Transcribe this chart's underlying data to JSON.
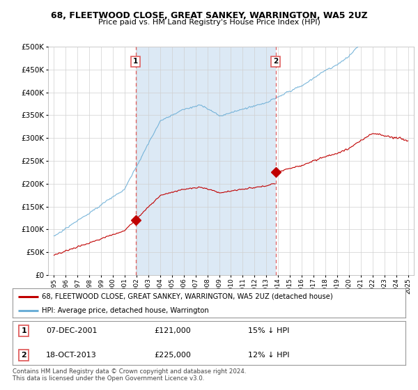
{
  "title1": "68, FLEETWOOD CLOSE, GREAT SANKEY, WARRINGTON, WA5 2UZ",
  "title2": "Price paid vs. HM Land Registry's House Price Index (HPI)",
  "legend_line1": "68, FLEETWOOD CLOSE, GREAT SANKEY, WARRINGTON, WA5 2UZ (detached house)",
  "legend_line2": "HPI: Average price, detached house, Warrington",
  "footer": "Contains HM Land Registry data © Crown copyright and database right 2024.\nThis data is licensed under the Open Government Licence v3.0.",
  "sale1_date": "07-DEC-2001",
  "sale1_price": 121000,
  "sale1_hpi": "15% ↓ HPI",
  "sale1_year": 2001.917,
  "sale2_date": "18-OCT-2013",
  "sale2_price": 225000,
  "sale2_hpi": "12% ↓ HPI",
  "sale2_year": 2013.792,
  "vline1_x": 2001.917,
  "vline2_x": 2013.792,
  "ylim": [
    0,
    500000
  ],
  "xlim": [
    1994.5,
    2025.5
  ],
  "hpi_color": "#6baed6",
  "price_color": "#c00000",
  "vline_color": "#e06060",
  "shade_color": "#dce9f5",
  "background_color": "#ffffff",
  "plot_bg": "#ffffff"
}
